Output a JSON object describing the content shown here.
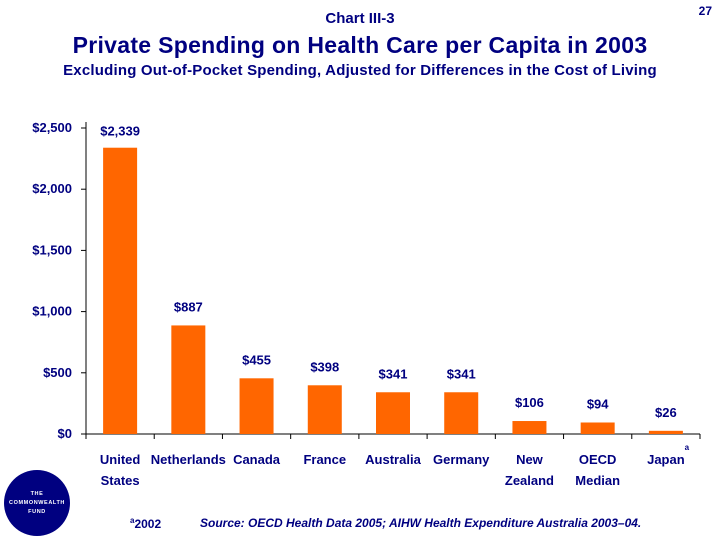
{
  "header": {
    "chart_label": "Chart III-3",
    "page_number": "27",
    "title": "Private Spending on Health Care per Capita in 2003",
    "subtitle": "Excluding Out-of-Pocket Spending, Adjusted for Differences in the Cost of Living"
  },
  "chart_data": {
    "type": "bar",
    "categories": [
      "United States",
      "Netherlands",
      "Canada",
      "France",
      "Australia",
      "Germany",
      "New Zealand",
      "OECD Median",
      "Japan"
    ],
    "category_lines": [
      [
        "United",
        "States"
      ],
      [
        "Netherlands"
      ],
      [
        "Canada"
      ],
      [
        "France"
      ],
      [
        "Australia"
      ],
      [
        "Germany"
      ],
      [
        "New",
        "Zealand"
      ],
      [
        "OECD",
        "Median"
      ],
      [
        "Japan"
      ]
    ],
    "values": [
      2339,
      887,
      455,
      398,
      341,
      341,
      106,
      94,
      26
    ],
    "data_labels": [
      "$2,339",
      "$887",
      "$455",
      "$398",
      "$341",
      "$341",
      "$106",
      "$94",
      "$26"
    ],
    "yticks": [
      0,
      500,
      1000,
      1500,
      2000,
      2500
    ],
    "ytick_labels": [
      "$0",
      "$500",
      "$1,000",
      "$1,500",
      "$2,000",
      "$2,500"
    ],
    "ylim": [
      0,
      2500
    ],
    "annotation": {
      "category": "Japan",
      "mark": "a"
    },
    "bar_color": "#ff6600",
    "grid": false,
    "xlabel": "",
    "ylabel": ""
  },
  "footer": {
    "logo_lines": [
      "THE",
      "COMMONWEALTH",
      "FUND"
    ],
    "footnote": "a2002",
    "source": "Source: OECD Health Data 2005; AIHW Health Expenditure Australia 2003–04."
  }
}
